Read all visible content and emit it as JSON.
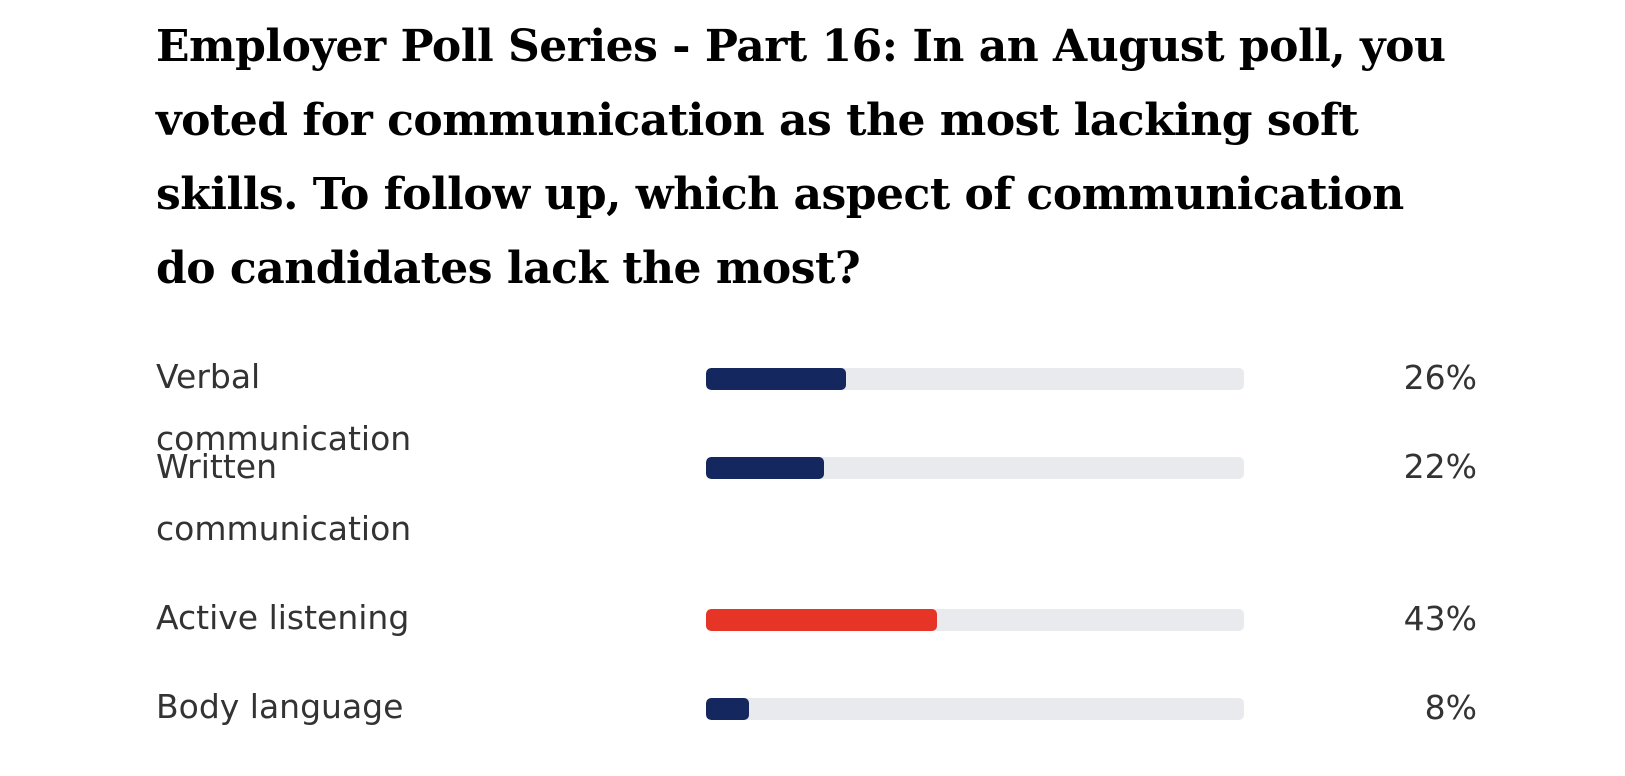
{
  "poll": {
    "title": "Employer Poll Series - Part 16: In an August poll, you voted for communication as the most lacking soft skills. To follow up, which aspect of communication do candidates lack the most?"
  },
  "chart_data": {
    "type": "bar",
    "title": "Employer Poll Series - Part 16: In an August poll, you voted for communication as the most lacking soft skills. To follow up, which aspect of communication do candidates lack the most?",
    "categories": [
      "Verbal communication",
      "Written communication",
      "Active listening",
      "Body language"
    ],
    "values": [
      26,
      22,
      43,
      8
    ],
    "value_labels": [
      "26%",
      "22%",
      "43%",
      "8%"
    ],
    "ylim": [
      0,
      100
    ],
    "highlight_index": 2,
    "colors": {
      "default": "#14275e",
      "highlight": "#e63427",
      "track": "#e9eaee"
    }
  }
}
